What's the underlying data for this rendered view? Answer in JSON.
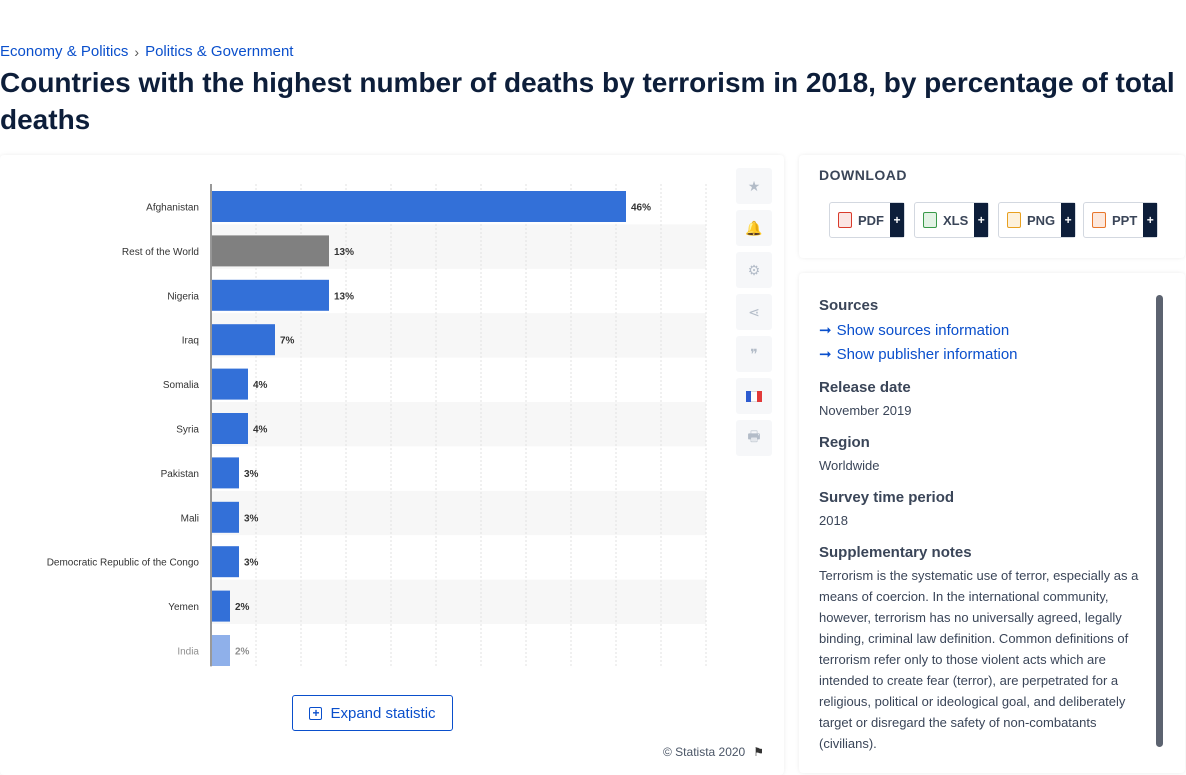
{
  "breadcrumb": {
    "item1": "Economy & Politics",
    "separator": "›",
    "item2": "Politics & Government"
  },
  "page_title": "Countries with the highest number of deaths by terrorism in 2018, by percentage of total deaths",
  "chart_data": {
    "type": "bar",
    "orientation": "horizontal",
    "categories": [
      "Afghanistan",
      "Rest of the World",
      "Nigeria",
      "Iraq",
      "Somalia",
      "Syria",
      "Pakistan",
      "Mali",
      "Democratic Republic of the Congo",
      "Yemen",
      "India"
    ],
    "values": [
      46,
      13,
      13,
      7,
      4,
      4,
      3,
      3,
      3,
      2,
      2
    ],
    "value_labels": [
      "46%",
      "13%",
      "13%",
      "7%",
      "4%",
      "4%",
      "3%",
      "3%",
      "3%",
      "2%",
      "2%"
    ],
    "bar_color": "#3370d8",
    "highlight": {
      "Rest of the World": "#808080"
    },
    "xlim": [
      0,
      55
    ],
    "grid": true
  },
  "toolbar": {
    "icons": [
      "star-icon",
      "bell-icon",
      "gear-icon",
      "share-icon",
      "quote-icon",
      "french-flag-icon",
      "print-icon"
    ]
  },
  "expand_label": "Expand statistic",
  "copyright": "© Statista 2020",
  "download": {
    "title": "DOWNLOAD",
    "buttons": [
      {
        "label": "PDF",
        "plus": "+",
        "color": "#d93a2b"
      },
      {
        "label": "XLS",
        "plus": "+",
        "color": "#3a9a4a"
      },
      {
        "label": "PNG",
        "plus": "+",
        "color": "#e8a020"
      },
      {
        "label": "PPT",
        "plus": "+",
        "color": "#e8762b"
      }
    ]
  },
  "info": {
    "sources_heading": "Sources",
    "show_sources": "Show sources information",
    "show_publisher": "Show publisher information",
    "release_heading": "Release date",
    "release_value": "November 2019",
    "region_heading": "Region",
    "region_value": "Worldwide",
    "survey_heading": "Survey time period",
    "survey_value": "2018",
    "notes_heading": "Supplementary notes",
    "notes_text": "Terrorism is the systematic use of terror, especially as a means of coercion. In the international community, however, terrorism has no universally agreed, legally binding, criminal law definition. Common definitions of terrorism refer only to those violent acts which are intended to create fear (terror), are perpetrated for a religious, political or ideological goal, and deliberately target or disregard the safety of non-combatants (civilians)."
  }
}
